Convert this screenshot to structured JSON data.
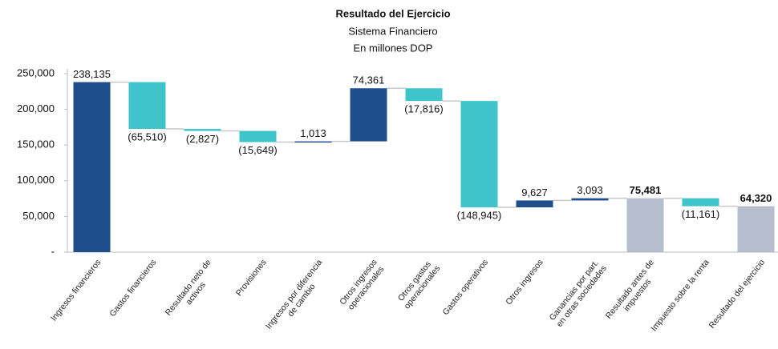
{
  "chart_data": {
    "type": "waterfall",
    "title": "Resultado del Ejercicio",
    "subtitle": "Sistema Financiero",
    "unit_note": "En millones DOP",
    "categories": [
      "Ingresos financieros",
      "Gastos financieros",
      "Resultado neto de\nactivos",
      "Provisiones",
      "Ingresos por diferencia\nde cambio",
      "Otros ingresos\noperacionales",
      "Otros gastos\noperacionales",
      "Gastos operativos",
      "Otros ingresos",
      "Ganancias por part.\nen otras sociedades",
      "Resultado antes de\nimpuestos",
      "Impuesto sobre la renta",
      "Resultado del ejercicio"
    ],
    "values": [
      238135,
      -65510,
      -2827,
      -15649,
      1013,
      74361,
      -17816,
      -148945,
      9627,
      3093,
      75481,
      -11161,
      64320
    ],
    "value_labels": [
      "238,135",
      "(65,510)",
      "(2,827)",
      "(15,649)",
      "1,013",
      "74,361",
      "(17,816)",
      "(148,945)",
      "9,627",
      "3,093",
      "75,481",
      "(11,161)",
      "64,320"
    ],
    "is_total": [
      false,
      false,
      false,
      false,
      false,
      false,
      false,
      false,
      false,
      false,
      true,
      false,
      true
    ],
    "increase_color": "#1f4e8c",
    "decrease_color": "#3fc4cc",
    "total_color": "#b6bdcc",
    "ylim": [
      0,
      250000
    ],
    "yticks": [
      {
        "value": 0,
        "label": "-"
      },
      {
        "value": 50000,
        "label": "50,000"
      },
      {
        "value": 100000,
        "label": "100,000"
      },
      {
        "value": 150000,
        "label": "150,000"
      },
      {
        "value": 200000,
        "label": "200,000"
      },
      {
        "value": 250000,
        "label": "250,000"
      }
    ],
    "grid": false
  }
}
